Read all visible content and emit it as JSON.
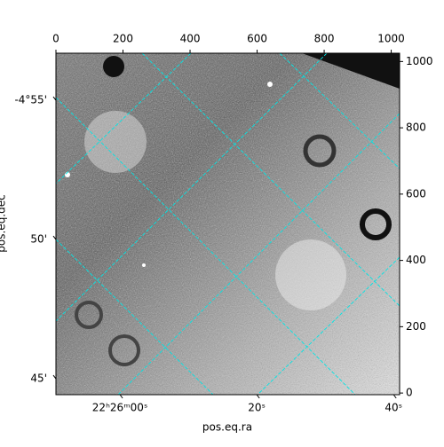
{
  "chart_data": {
    "type": "image",
    "xlabel": "pos.eq.ra",
    "ylabel": "pos.eq.dec",
    "xlim": [
      0,
      1025
    ],
    "ylim": [
      -5,
      1025
    ],
    "xticks": [
      0,
      200,
      400,
      600,
      800,
      1000
    ],
    "yticks": [
      0,
      200,
      400,
      600,
      800,
      1000
    ],
    "ra_ticks": [
      {
        "value": 191,
        "label": "22ʰ26ᵐ00ˢ"
      },
      {
        "value": 599,
        "label": "20ˢ"
      },
      {
        "value": 1007,
        "label": "40ˢ"
      }
    ],
    "dec_ticks": [
      {
        "value": 883,
        "label": "-4°55'"
      },
      {
        "value": 463,
        "label": "50'"
      },
      {
        "value": 43,
        "label": "45'"
      }
    ]
  }
}
